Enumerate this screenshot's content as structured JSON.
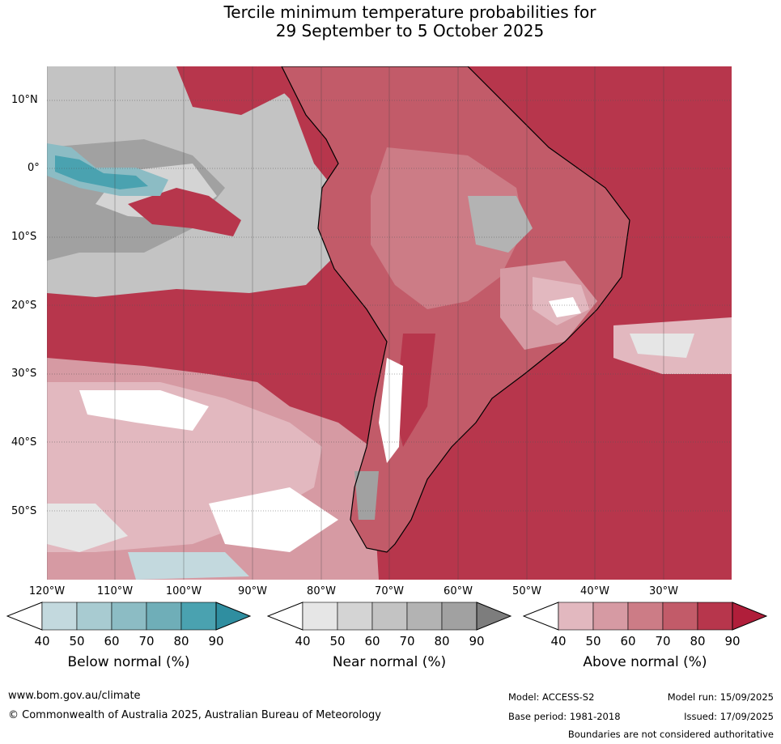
{
  "title_line1": "Tercile minimum temperature probabilities for",
  "title_line2": "29 September to 5 October 2025",
  "lat_labels": [
    "10°N",
    "0°",
    "10°S",
    "20°S",
    "30°S",
    "40°S",
    "50°S"
  ],
  "lon_labels": [
    "120°W",
    "110°W",
    "100°W",
    "90°W",
    "80°W",
    "70°W",
    "60°W",
    "50°W",
    "40°W",
    "30°W"
  ],
  "colorbars": [
    {
      "label": "Below normal (%)",
      "colors": [
        "#c3d9de",
        "#a8cbd1",
        "#8cbcc4",
        "#6faeb8",
        "#4aa2b0",
        "#2f8ea0"
      ]
    },
    {
      "label": "Near normal (%)",
      "colors": [
        "#e6e6e6",
        "#d4d4d4",
        "#c3c3c3",
        "#b3b3b3",
        "#a1a1a1",
        "#7d7d7d"
      ]
    },
    {
      "label": "Above normal (%)",
      "colors": [
        "#e2b8bf",
        "#d69aa3",
        "#cc7c86",
        "#c25b69",
        "#b7364c",
        "#b01e3a"
      ]
    }
  ],
  "tick_labels": [
    "40",
    "50",
    "60",
    "70",
    "80",
    "90"
  ],
  "website": "www.bom.gov.au/climate",
  "copyright": "© Commonwealth of Australia 2025, Australian Bureau of Meteorology",
  "model": "Model: ACCESS-S2",
  "base_period": "Base period: 1981-2018",
  "model_run": "Model run: 15/09/2025",
  "issued": "Issued: 17/09/2025",
  "disclaimer": "Boundaries are not considered authoritative"
}
